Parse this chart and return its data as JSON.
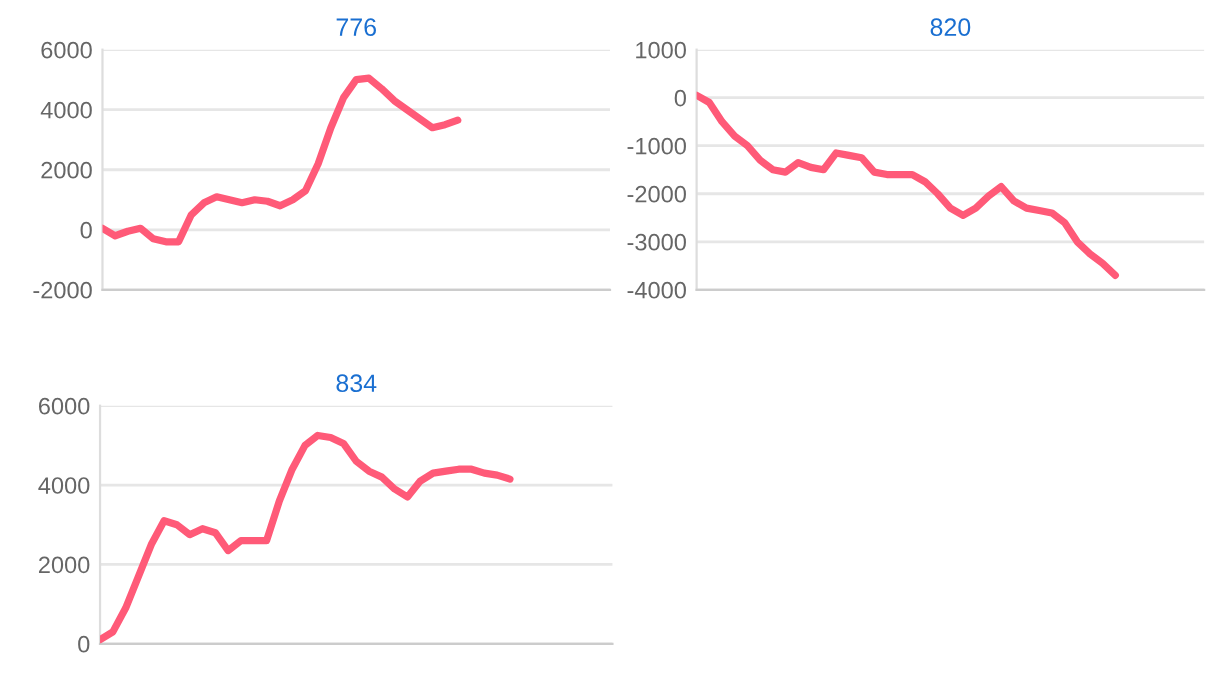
{
  "chart_data": [
    {
      "type": "line",
      "title": "776",
      "categories": [
        null,
        null,
        null,
        null,
        null,
        null,
        null,
        null,
        null,
        null,
        null,
        null,
        null,
        null,
        null,
        null,
        null,
        null,
        null,
        null,
        null,
        null,
        null,
        null,
        null,
        null,
        null,
        null,
        null,
        null,
        null,
        null,
        null,
        null,
        null,
        null,
        null,
        null,
        null,
        null,
        null
      ],
      "series": [
        {
          "color": "#ff5a78",
          "values": [
            50,
            -200,
            -50,
            50,
            -300,
            -400,
            -400,
            500,
            900,
            1100,
            1000,
            900,
            1000,
            950,
            800,
            1000,
            1300,
            2200,
            3400,
            4400,
            5000,
            5050,
            4700,
            4300,
            4000,
            3700,
            3400,
            3500,
            3650,
            null,
            null,
            null,
            null,
            null,
            null,
            null,
            null,
            null,
            null,
            null,
            null
          ]
        }
      ],
      "ylim": [
        -2000,
        6000
      ],
      "yticks": [
        -2000,
        0,
        2000,
        4000,
        6000
      ],
      "tick_labels": "y",
      "grid": "y",
      "marker": "none",
      "line_style": "solid"
    },
    {
      "type": "line",
      "title": "820",
      "categories": [
        null,
        null,
        null,
        null,
        null,
        null,
        null,
        null,
        null,
        null,
        null,
        null,
        null,
        null,
        null,
        null,
        null,
        null,
        null,
        null,
        null,
        null,
        null,
        null,
        null,
        null,
        null,
        null,
        null,
        null,
        null,
        null,
        null,
        null,
        null,
        null,
        null,
        null,
        null,
        null,
        null
      ],
      "series": [
        {
          "color": "#ff5a78",
          "values": [
            50,
            -100,
            -500,
            -800,
            -1000,
            -1300,
            -1500,
            -1550,
            -1350,
            -1450,
            -1500,
            -1150,
            -1200,
            -1250,
            -1550,
            -1600,
            -1600,
            -1600,
            -1750,
            -2000,
            -2300,
            -2450,
            -2300,
            -2050,
            -1850,
            -2150,
            -2300,
            -2350,
            -2400,
            -2600,
            -3000,
            -3250,
            -3450,
            -3700,
            null,
            null,
            null,
            null,
            null,
            null,
            null
          ]
        }
      ],
      "ylim": [
        -4000,
        1000
      ],
      "yticks": [
        -4000,
        -3000,
        -2000,
        -1000,
        0,
        1000
      ],
      "tick_labels": "y",
      "grid": "y",
      "marker": "none",
      "line_style": "solid"
    },
    {
      "type": "line",
      "title": "834",
      "categories": [
        null,
        null,
        null,
        null,
        null,
        null,
        null,
        null,
        null,
        null,
        null,
        null,
        null,
        null,
        null,
        null,
        null,
        null,
        null,
        null,
        null,
        null,
        null,
        null,
        null,
        null,
        null,
        null,
        null,
        null,
        null,
        null,
        null,
        null,
        null,
        null,
        null,
        null,
        null,
        null,
        null
      ],
      "series": [
        {
          "color": "#ff5a78",
          "values": [
            100,
            300,
            900,
            1700,
            2500,
            3100,
            3000,
            2750,
            2900,
            2800,
            2350,
            2600,
            2600,
            2600,
            3600,
            4400,
            5000,
            5250,
            5200,
            5050,
            4600,
            4350,
            4200,
            3900,
            3700,
            4100,
            4300,
            4350,
            4400,
            4400,
            4300,
            4250,
            4150,
            null,
            null,
            null,
            null,
            null,
            null,
            null,
            null
          ]
        }
      ],
      "ylim": [
        0,
        6000
      ],
      "yticks": [
        0,
        2000,
        4000,
        6000
      ],
      "tick_labels": "y",
      "grid": "y",
      "marker": "none",
      "line_style": "solid"
    }
  ]
}
